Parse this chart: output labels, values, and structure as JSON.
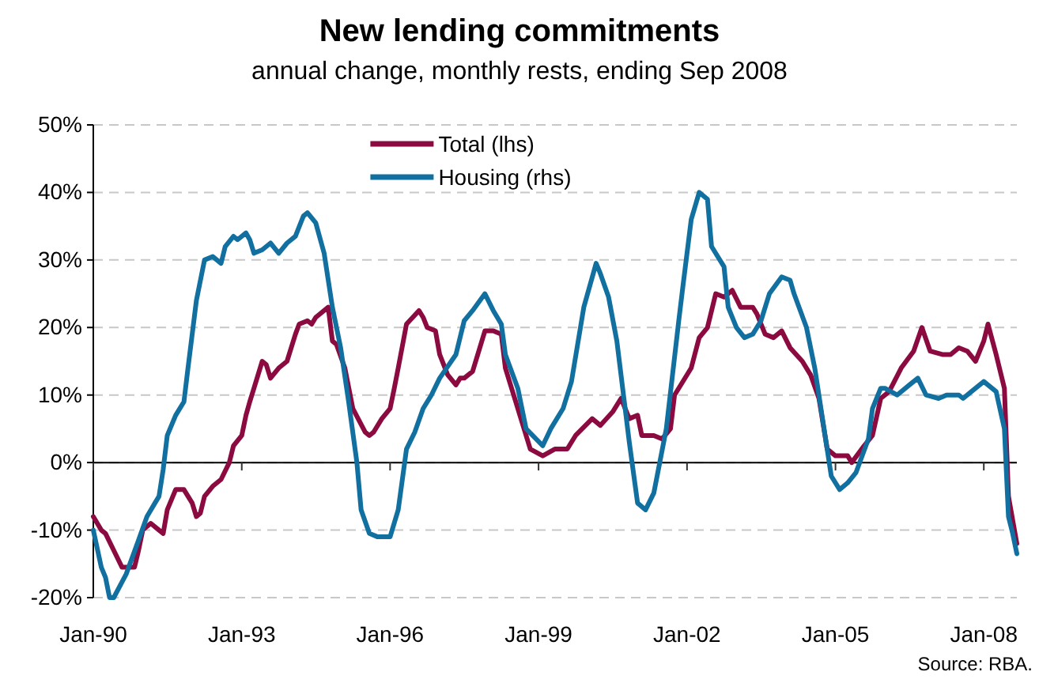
{
  "chart_data": {
    "type": "line",
    "title": "New lending commitments",
    "subtitle": "annual change, monthly rests, ending Sep 2008",
    "xlim": [
      "1990-01",
      "2008-09"
    ],
    "xticks": [
      {
        "value": "1990-01",
        "label": "Jan-90"
      },
      {
        "value": "1993-01",
        "label": "Jan-93"
      },
      {
        "value": "1996-01",
        "label": "Jan-96"
      },
      {
        "value": "1999-01",
        "label": "Jan-99"
      },
      {
        "value": "2002-01",
        "label": "Jan-02"
      },
      {
        "value": "2005-01",
        "label": "Jan-05"
      },
      {
        "value": "2008-01",
        "label": "Jan-08"
      }
    ],
    "ylim": [
      -20,
      50
    ],
    "yticks": [
      {
        "value": -20,
        "label": "-20%"
      },
      {
        "value": -10,
        "label": "-10%"
      },
      {
        "value": 0,
        "label": "0%"
      },
      {
        "value": 10,
        "label": "10%"
      },
      {
        "value": 20,
        "label": "20%"
      },
      {
        "value": 30,
        "label": "30%"
      },
      {
        "value": 40,
        "label": "40%"
      },
      {
        "value": 50,
        "label": "50%"
      }
    ],
    "grid": "y",
    "legend": "top",
    "line_style": "solid",
    "marker": "none",
    "annotations": [
      "Source: RBA."
    ],
    "series": [
      {
        "name": "Total (lhs)",
        "color": "#8b0a3f",
        "x": [
          "1990-01",
          "1990-03",
          "1990-04",
          "1990-06",
          "1990-08",
          "1990-11",
          "1990-12",
          "1991-01",
          "1991-03",
          "1991-05",
          "1991-06",
          "1991-07",
          "1991-09",
          "1991-11",
          "1992-01",
          "1992-02",
          "1992-03",
          "1992-04",
          "1992-06",
          "1992-08",
          "1992-10",
          "1992-11",
          "1993-01",
          "1993-02",
          "1993-03",
          "1993-04",
          "1993-06",
          "1993-07",
          "1993-08",
          "1993-10",
          "1993-12",
          "1994-02",
          "1994-03",
          "1994-05",
          "1994-06",
          "1994-07",
          "1994-10",
          "1994-11",
          "1994-12",
          "1995-02",
          "1995-04",
          "1995-07",
          "1995-08",
          "1995-09",
          "1995-11",
          "1996-01",
          "1996-02",
          "1996-03",
          "1996-05",
          "1996-08",
          "1996-09",
          "1996-10",
          "1996-12",
          "1997-01",
          "1997-03",
          "1997-05",
          "1997-06",
          "1997-07",
          "1997-09",
          "1997-11",
          "1997-12",
          "1998-02",
          "1998-04",
          "1998-05",
          "1998-08",
          "1998-11",
          "1999-02",
          "1999-05",
          "1999-08",
          "1999-10",
          "2000-02",
          "2000-04",
          "2000-07",
          "2000-09",
          "2000-11",
          "2001-01",
          "2001-02",
          "2001-05",
          "2001-07",
          "2001-09",
          "2001-10",
          "2002-02",
          "2002-04",
          "2002-06",
          "2002-08",
          "2002-10",
          "2002-12",
          "2003-02",
          "2003-05",
          "2003-06",
          "2003-08",
          "2003-10",
          "2003-12",
          "2004-02",
          "2004-05",
          "2004-07",
          "2004-09",
          "2004-11",
          "2005-01",
          "2005-04",
          "2005-05",
          "2005-08",
          "2005-10",
          "2005-12",
          "2006-02",
          "2006-05",
          "2006-08",
          "2006-10",
          "2006-12",
          "2007-03",
          "2007-05",
          "2007-07",
          "2007-09",
          "2007-11",
          "2008-01",
          "2008-02",
          "2008-04",
          "2008-06",
          "2008-07",
          "2008-08",
          "2008-09"
        ],
        "values": [
          -8,
          -10,
          -10.5,
          -13,
          -15.5,
          -15.5,
          -13,
          -10,
          -9,
          -10,
          -10.5,
          -7,
          -4,
          -4,
          -6,
          -8,
          -7.5,
          -5,
          -3.5,
          -2.5,
          0,
          2.5,
          4,
          7,
          9,
          11,
          15,
          14.5,
          12.5,
          14,
          15,
          19,
          20.5,
          21,
          20.5,
          21.5,
          23,
          18,
          17.5,
          14,
          8,
          4.5,
          4,
          4.5,
          6.5,
          8,
          11,
          14,
          20.5,
          22.5,
          21.5,
          20,
          19.5,
          16,
          13,
          11.5,
          12.5,
          12.5,
          13.5,
          17.5,
          19.5,
          19.5,
          19,
          14,
          8,
          2,
          1,
          2,
          2,
          4,
          6.5,
          5.5,
          7.5,
          9.5,
          6.5,
          7,
          4,
          4,
          3.5,
          5,
          10,
          14,
          18.5,
          20,
          25,
          24.5,
          25.5,
          23,
          23,
          22,
          19,
          18.5,
          19.5,
          17,
          15,
          13,
          9.5,
          2,
          1,
          1,
          0,
          2.5,
          4,
          9.5,
          10.5,
          14,
          16.5,
          20,
          16.5,
          16,
          16,
          17,
          16.5,
          15,
          18,
          20.5,
          16,
          11,
          -5,
          -8.5,
          -12
        ]
      },
      {
        "name": "Housing (rhs)",
        "color": "#1170a0",
        "x": [
          "1990-01",
          "1990-03",
          "1990-04",
          "1990-05",
          "1990-06",
          "1990-09",
          "1990-12",
          "1991-02",
          "1991-04",
          "1991-05",
          "1991-06",
          "1991-07",
          "1991-09",
          "1991-11",
          "1991-12",
          "1992-02",
          "1992-04",
          "1992-06",
          "1992-08",
          "1992-09",
          "1992-11",
          "1992-12",
          "1993-02",
          "1993-03",
          "1993-04",
          "1993-06",
          "1993-08",
          "1993-10",
          "1993-12",
          "1994-02",
          "1994-04",
          "1994-05",
          "1994-07",
          "1994-09",
          "1994-11",
          "1995-01",
          "1995-03",
          "1995-05",
          "1995-06",
          "1995-08",
          "1995-10",
          "1996-01",
          "1996-03",
          "1996-05",
          "1996-07",
          "1996-09",
          "1996-11",
          "1997-01",
          "1997-05",
          "1997-07",
          "1997-09",
          "1997-12",
          "1998-02",
          "1998-04",
          "1998-05",
          "1998-08",
          "1998-10",
          "1999-02",
          "1999-04",
          "1999-07",
          "1999-09",
          "1999-12",
          "2000-03",
          "2000-04",
          "2000-06",
          "2000-08",
          "2000-11",
          "2001-01",
          "2001-03",
          "2001-05",
          "2001-08",
          "2001-11",
          "2001-12",
          "2002-02",
          "2002-04",
          "2002-06",
          "2002-07",
          "2002-10",
          "2002-11",
          "2003-01",
          "2003-03",
          "2003-05",
          "2003-07",
          "2003-09",
          "2003-12",
          "2004-02",
          "2004-03",
          "2004-06",
          "2004-08",
          "2004-10",
          "2004-12",
          "2005-02",
          "2005-04",
          "2005-06",
          "2005-09",
          "2005-10",
          "2005-12",
          "2006-01",
          "2006-04",
          "2006-07",
          "2006-09",
          "2006-11",
          "2007-02",
          "2007-04",
          "2007-07",
          "2007-08",
          "2007-10",
          "2008-01",
          "2008-04",
          "2008-06",
          "2008-07",
          "2008-08",
          "2008-09"
        ],
        "values": [
          -10,
          -15.5,
          -17,
          -20,
          -20,
          -16.5,
          -11.5,
          -8,
          -6,
          -5,
          -1,
          4,
          7,
          9,
          14,
          24,
          30,
          30.5,
          29.5,
          32,
          33.5,
          33,
          34,
          33,
          31,
          31.5,
          32.5,
          31,
          32.5,
          33.5,
          36.5,
          37,
          35.5,
          31,
          23,
          17,
          9,
          0,
          -7,
          -10.5,
          -11,
          -11,
          -7,
          2,
          4.5,
          8,
          10,
          12.5,
          16,
          21,
          22.5,
          25,
          22.5,
          20.5,
          16,
          11,
          5,
          2.5,
          5,
          8,
          12,
          23,
          29.5,
          28,
          24.5,
          18,
          3,
          -6,
          -7,
          -4.5,
          5,
          21,
          26,
          36,
          40,
          39,
          32,
          29,
          23,
          20,
          18.5,
          19,
          21,
          25,
          27.5,
          27,
          25,
          20,
          14,
          6,
          -2,
          -4,
          -3,
          -1.5,
          3.5,
          8,
          11,
          11,
          10,
          11.5,
          12.5,
          10,
          9.5,
          10,
          10,
          9.5,
          10.5,
          12,
          10.5,
          5,
          -8,
          -10.5,
          -13.5
        ]
      }
    ]
  }
}
